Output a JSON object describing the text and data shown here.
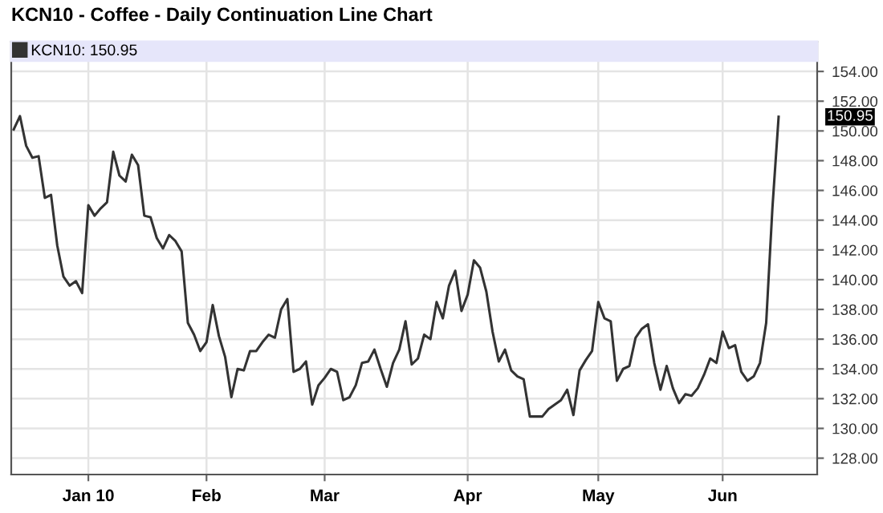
{
  "chart_data": {
    "type": "line",
    "title": "KCN10 - Coffee - Daily Continuation Line Chart",
    "categories": [
      null,
      null,
      null,
      null,
      null,
      null,
      null,
      null,
      null,
      null,
      null,
      null,
      "Jan 10",
      null,
      null,
      null,
      null,
      null,
      null,
      null,
      null,
      null,
      null,
      null,
      null,
      null,
      null,
      null,
      null,
      null,
      null,
      "Feb",
      null,
      null,
      null,
      null,
      null,
      null,
      null,
      null,
      null,
      null,
      null,
      null,
      null,
      null,
      null,
      null,
      null,
      null,
      "Mar",
      null,
      null,
      null,
      null,
      null,
      null,
      null,
      null,
      null,
      null,
      null,
      null,
      null,
      null,
      null,
      null,
      null,
      null,
      null,
      null,
      null,
      null,
      "Apr",
      null,
      null,
      null,
      null,
      null,
      null,
      null,
      null,
      null,
      null,
      null,
      null,
      null,
      null,
      null,
      null,
      null,
      null,
      null,
      null,
      "May",
      null,
      null,
      null,
      null,
      null,
      null,
      null,
      null,
      null,
      null,
      null,
      null,
      null,
      null,
      null,
      null,
      null,
      null,
      null,
      "Jun",
      null,
      null,
      null,
      null,
      null,
      null,
      null,
      null,
      null
    ],
    "series": [
      {
        "name": "KCN10: 150.95",
        "color": "#333333",
        "values": [
          150.1,
          151.0,
          149.0,
          148.2,
          148.3,
          145.5,
          145.7,
          142.3,
          140.2,
          139.6,
          139.9,
          139.1,
          145.0,
          144.3,
          144.8,
          145.2,
          148.6,
          147.0,
          146.6,
          148.4,
          147.7,
          144.3,
          144.2,
          142.8,
          142.1,
          143.0,
          142.6,
          141.9,
          137.1,
          136.3,
          135.2,
          135.8,
          138.3,
          136.2,
          134.8,
          132.1,
          134.0,
          133.9,
          135.2,
          135.2,
          135.8,
          136.3,
          136.1,
          138.0,
          138.7,
          133.8,
          134.0,
          134.5,
          131.6,
          132.9,
          133.4,
          134.0,
          133.8,
          131.9,
          132.1,
          132.9,
          134.4,
          134.5,
          135.3,
          134.0,
          132.8,
          134.4,
          135.3,
          137.2,
          134.3,
          134.7,
          136.3,
          136.0,
          138.5,
          137.4,
          139.6,
          140.6,
          137.9,
          139.0,
          141.3,
          140.8,
          139.2,
          136.5,
          134.5,
          135.3,
          133.9,
          133.5,
          133.3,
          130.8,
          130.8,
          130.8,
          131.3,
          131.6,
          131.9,
          132.6,
          130.9,
          133.9,
          134.6,
          135.2,
          138.5,
          137.4,
          137.2,
          133.2,
          134.0,
          134.2,
          136.1,
          136.7,
          137.0,
          134.4,
          132.6,
          134.2,
          132.7,
          131.7,
          132.3,
          132.2,
          132.7,
          133.6,
          134.7,
          134.4,
          136.5,
          135.4,
          135.6,
          133.8,
          133.2,
          133.5,
          134.4,
          137.1,
          144.8,
          150.95
        ]
      }
    ],
    "ylim": [
      126.9,
      156
    ],
    "yticks": [
      {
        "value": 128,
        "label": "128.00"
      },
      {
        "value": 130,
        "label": "130.00"
      },
      {
        "value": 132,
        "label": "132.00"
      },
      {
        "value": 134,
        "label": "134.00"
      },
      {
        "value": 136,
        "label": "136.00"
      },
      {
        "value": 138,
        "label": "138.00"
      },
      {
        "value": 140,
        "label": "140.00"
      },
      {
        "value": 142,
        "label": "142.00"
      },
      {
        "value": 144,
        "label": "144.00"
      },
      {
        "value": 146,
        "label": "146.00"
      },
      {
        "value": 148,
        "label": "148.00"
      },
      {
        "value": 150,
        "label": "150.00"
      },
      {
        "value": 152,
        "label": "152.00"
      },
      {
        "value": 154,
        "label": "154.00"
      }
    ],
    "annotations": [
      "150.95"
    ],
    "grid": true,
    "legend": "top left",
    "marker": "none",
    "line_style": "solid"
  }
}
